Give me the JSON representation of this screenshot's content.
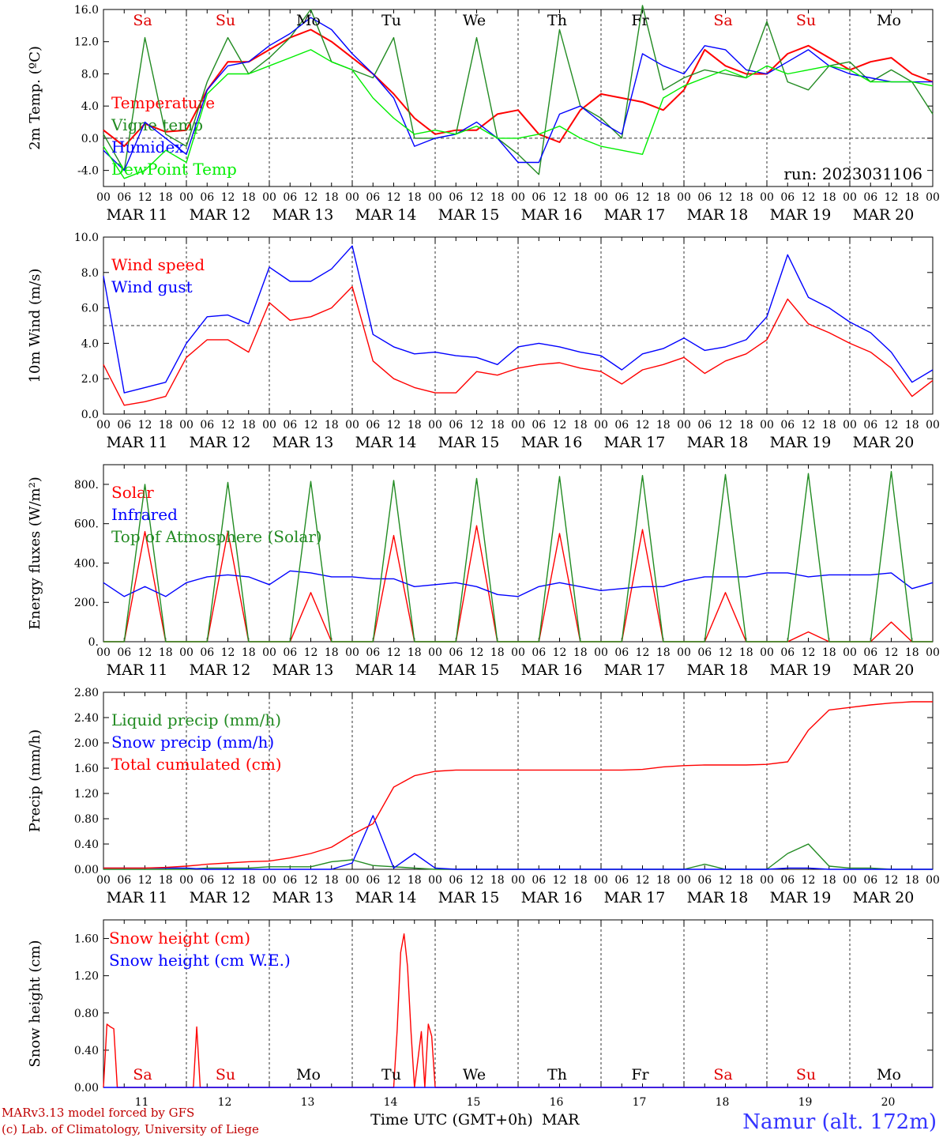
{
  "footer": {
    "model": "MARv3.13 model forced by GFS",
    "copyright": "(c) Lab. of Climatology, University of Liege",
    "xaxis_title": "Time UTC (GMT+0h)",
    "month": "MAR",
    "location": "Namur (alt. 172m)"
  },
  "days": [
    "MAR 11",
    "MAR 12",
    "MAR 13",
    "MAR 14",
    "MAR 15",
    "MAR 16",
    "MAR 17",
    "MAR 18",
    "MAR 19",
    "MAR 20"
  ],
  "day_numbers": [
    "11",
    "12",
    "13",
    "14",
    "15",
    "16",
    "17",
    "18",
    "19",
    "20"
  ],
  "weekdays": [
    "Sa",
    "Su",
    "Mo",
    "Tu",
    "We",
    "Th",
    "Fr",
    "Sa",
    "Su",
    "Mo"
  ],
  "weekday_colors": [
    "#e00000",
    "#e00000",
    "#000000",
    "#000000",
    "#000000",
    "#000000",
    "#000000",
    "#e00000",
    "#e00000",
    "#000000"
  ],
  "hour_ticks": [
    "00",
    "06",
    "12",
    "18"
  ],
  "chart_data": [
    {
      "type": "line",
      "ylabel": "2m Temp. (ºC)",
      "ylim": [
        -6,
        16
      ],
      "yticks": [
        -4,
        0,
        4,
        8,
        12,
        16
      ],
      "ytick_labels": [
        "-4.0",
        "0.0",
        "4.0",
        "8.0",
        "12.0",
        "16.0"
      ],
      "ref_line": 0,
      "annotation": "run: 2023031106",
      "x": [
        0,
        6,
        12,
        18,
        24,
        30,
        36,
        42,
        48,
        54,
        60,
        66,
        72,
        78,
        84,
        90,
        96,
        102,
        108,
        114,
        120,
        126,
        132,
        138,
        144,
        150,
        156,
        162,
        168,
        174,
        180,
        186,
        192,
        198,
        204,
        210,
        216,
        222,
        228,
        234,
        240
      ],
      "series": [
        {
          "name": "Temperature",
          "color": "#ff0000",
          "values": [
            1.0,
            -1.0,
            1.8,
            0.8,
            1.0,
            6.0,
            9.5,
            9.5,
            11.0,
            12.5,
            13.5,
            12.0,
            10.0,
            8.0,
            5.5,
            2.5,
            0.5,
            1.0,
            1.0,
            3.0,
            3.5,
            0.5,
            -0.5,
            3.5,
            5.5,
            5.0,
            4.5,
            3.5,
            6.0,
            11.0,
            9.0,
            8.0,
            8.0,
            10.5,
            11.5,
            10.0,
            8.5,
            9.5,
            10.0,
            8.0,
            7.0
          ]
        },
        {
          "name": "Vigne temp",
          "color": "#228b22",
          "values": [
            0.5,
            -4.0,
            12.5,
            0.5,
            -1.0,
            7.0,
            12.5,
            8.0,
            10.0,
            12.5,
            16.0,
            9.5,
            8.5,
            7.5,
            12.5,
            0.0,
            0.0,
            0.5,
            12.5,
            0.0,
            -2.0,
            -4.5,
            13.5,
            4.0,
            2.5,
            0.0,
            16.5,
            6.0,
            7.5,
            8.5,
            8.0,
            7.5,
            14.5,
            7.0,
            6.0,
            9.0,
            9.5,
            7.0,
            8.5,
            7.0,
            3.0
          ]
        },
        {
          "name": "Humidex",
          "color": "#0000ff",
          "values": [
            -1.5,
            -4.0,
            2.0,
            0.0,
            -2.0,
            6.0,
            9.0,
            9.5,
            11.5,
            13.0,
            15.0,
            13.5,
            10.5,
            8.0,
            5.0,
            -1.0,
            0.0,
            0.5,
            2.0,
            0.0,
            -3.0,
            -3.0,
            3.0,
            4.0,
            2.0,
            0.5,
            10.5,
            9.0,
            8.0,
            11.5,
            11.0,
            8.5,
            8.0,
            9.5,
            11.0,
            9.0,
            8.0,
            7.5,
            7.0,
            7.0,
            7.0
          ]
        },
        {
          "name": "DewPoint Temp",
          "color": "#00ee00",
          "values": [
            -1.0,
            -5.0,
            -4.0,
            -1.5,
            -3.0,
            5.5,
            8.0,
            8.0,
            9.0,
            10.0,
            11.0,
            9.5,
            8.5,
            5.0,
            2.5,
            0.5,
            1.0,
            0.5,
            1.5,
            0.0,
            0.0,
            0.5,
            1.5,
            0.0,
            -1.0,
            -1.5,
            -2.0,
            5.0,
            6.5,
            7.5,
            8.5,
            7.5,
            9.0,
            8.0,
            8.5,
            9.0,
            8.5,
            7.0,
            7.0,
            7.0,
            6.5
          ]
        }
      ]
    },
    {
      "type": "line",
      "ylabel": "10m Wind (m/s)",
      "ylim": [
        0,
        10
      ],
      "yticks": [
        0,
        2,
        4,
        6,
        8,
        10
      ],
      "ytick_labels": [
        "0.0",
        "2.0",
        "4.0",
        "6.0",
        "8.0",
        "10.0"
      ],
      "ref_line": 5,
      "x": [
        0,
        6,
        12,
        18,
        24,
        30,
        36,
        42,
        48,
        54,
        60,
        66,
        72,
        78,
        84,
        90,
        96,
        102,
        108,
        114,
        120,
        126,
        132,
        138,
        144,
        150,
        156,
        162,
        168,
        174,
        180,
        186,
        192,
        198,
        204,
        210,
        216,
        222,
        228,
        234,
        240
      ],
      "series": [
        {
          "name": "Wind speed",
          "color": "#ff0000",
          "values": [
            2.8,
            0.5,
            0.7,
            1.0,
            3.2,
            4.2,
            4.2,
            3.5,
            6.3,
            5.3,
            5.5,
            6.0,
            7.2,
            3.0,
            2.0,
            1.5,
            1.2,
            1.2,
            2.4,
            2.2,
            2.6,
            2.8,
            2.9,
            2.6,
            2.4,
            1.7,
            2.5,
            2.8,
            3.2,
            2.3,
            3.0,
            3.4,
            4.2,
            6.5,
            5.1,
            4.6,
            4.0,
            3.5,
            2.6,
            1.0,
            1.9
          ]
        },
        {
          "name": "Wind gust",
          "color": "#0000ff",
          "values": [
            7.8,
            1.2,
            1.5,
            1.8,
            4.0,
            5.5,
            5.6,
            5.1,
            8.3,
            7.5,
            7.5,
            8.2,
            9.5,
            4.5,
            3.8,
            3.4,
            3.5,
            3.3,
            3.2,
            2.8,
            3.8,
            4.0,
            3.8,
            3.5,
            3.3,
            2.5,
            3.4,
            3.7,
            4.3,
            3.6,
            3.8,
            4.2,
            5.5,
            9.0,
            6.6,
            6.0,
            5.2,
            4.6,
            3.5,
            1.8,
            2.5
          ]
        }
      ]
    },
    {
      "type": "line",
      "ylabel": "Energy fluxes (W/m²)",
      "ylim": [
        0,
        900
      ],
      "yticks": [
        0,
        200,
        400,
        600,
        800
      ],
      "ytick_labels": [
        "0.",
        "200.",
        "400.",
        "600.",
        "800."
      ],
      "x": [
        0,
        6,
        12,
        18,
        24,
        30,
        36,
        42,
        48,
        54,
        60,
        66,
        72,
        78,
        84,
        90,
        96,
        102,
        108,
        114,
        120,
        126,
        132,
        138,
        144,
        150,
        156,
        162,
        168,
        174,
        180,
        186,
        192,
        198,
        204,
        210,
        216,
        222,
        228,
        234,
        240
      ],
      "series": [
        {
          "name": "Solar",
          "color": "#ff0000",
          "values": [
            0,
            0,
            560,
            0,
            0,
            0,
            560,
            0,
            0,
            0,
            250,
            0,
            0,
            0,
            540,
            0,
            0,
            0,
            590,
            0,
            0,
            0,
            550,
            0,
            0,
            0,
            570,
            0,
            0,
            0,
            250,
            0,
            0,
            0,
            50,
            0,
            0,
            0,
            100,
            0,
            0
          ]
        },
        {
          "name": "Infrared",
          "color": "#0000ff",
          "values": [
            300,
            230,
            280,
            230,
            300,
            330,
            340,
            330,
            290,
            360,
            350,
            330,
            330,
            320,
            320,
            280,
            290,
            300,
            280,
            240,
            230,
            280,
            300,
            280,
            260,
            270,
            280,
            280,
            310,
            330,
            330,
            330,
            350,
            350,
            330,
            340,
            340,
            340,
            350,
            270,
            300
          ]
        },
        {
          "name": "Top of Atmosphere (Solar)",
          "color": "#228b22",
          "values": [
            0,
            0,
            800,
            0,
            0,
            0,
            810,
            0,
            0,
            0,
            815,
            0,
            0,
            0,
            820,
            0,
            0,
            0,
            830,
            0,
            0,
            0,
            840,
            0,
            0,
            0,
            845,
            0,
            0,
            0,
            850,
            0,
            0,
            0,
            855,
            0,
            0,
            0,
            865,
            0,
            0
          ]
        }
      ]
    },
    {
      "type": "line",
      "ylabel": "Precip (mm/h)",
      "ylim": [
        0,
        2.8
      ],
      "yticks": [
        0,
        0.4,
        0.8,
        1.2,
        1.6,
        2.0,
        2.4,
        2.8
      ],
      "ytick_labels": [
        "0.00",
        "0.40",
        "0.80",
        "1.20",
        "1.60",
        "2.00",
        "2.40",
        "2.80"
      ],
      "x": [
        0,
        6,
        12,
        18,
        24,
        30,
        36,
        42,
        48,
        54,
        60,
        66,
        72,
        78,
        84,
        90,
        96,
        102,
        108,
        114,
        120,
        126,
        132,
        138,
        144,
        150,
        156,
        162,
        168,
        174,
        180,
        186,
        192,
        198,
        204,
        210,
        216,
        222,
        228,
        234,
        240
      ],
      "series": [
        {
          "name": "Liquid precip (mm/h)",
          "color": "#228b22",
          "values": [
            0,
            0,
            0,
            0,
            0,
            0.02,
            0.02,
            0.02,
            0.04,
            0.04,
            0.04,
            0.12,
            0.15,
            0.06,
            0.04,
            0.02,
            0,
            0,
            0,
            0,
            0,
            0,
            0,
            0,
            0,
            0,
            0,
            0,
            0,
            0.08,
            0,
            0,
            0,
            0.25,
            0.4,
            0.05,
            0.02,
            0.02,
            0,
            0,
            0
          ]
        },
        {
          "name": "Snow precip (mm/h)",
          "color": "#0000ff",
          "values": [
            0.02,
            0.02,
            0.02,
            0.02,
            0.02,
            0,
            0,
            0,
            0,
            0,
            0,
            0,
            0.1,
            0.85,
            0.02,
            0.25,
            0.02,
            0,
            0,
            0,
            0,
            0,
            0,
            0,
            0,
            0,
            0,
            0,
            0,
            0,
            0,
            0,
            0,
            0.02,
            0.02,
            0,
            0,
            0,
            0,
            0,
            0
          ]
        },
        {
          "name": "Total cumulated (cm)",
          "color": "#ff0000",
          "values": [
            0.02,
            0.02,
            0.02,
            0.03,
            0.05,
            0.08,
            0.1,
            0.12,
            0.13,
            0.18,
            0.25,
            0.35,
            0.55,
            0.72,
            1.3,
            1.48,
            1.55,
            1.57,
            1.57,
            1.57,
            1.57,
            1.57,
            1.57,
            1.57,
            1.57,
            1.57,
            1.58,
            1.62,
            1.64,
            1.65,
            1.65,
            1.65,
            1.66,
            1.7,
            2.2,
            2.52,
            2.56,
            2.6,
            2.63,
            2.65,
            2.65
          ]
        }
      ]
    },
    {
      "type": "line",
      "ylabel": "Snow height (cm)",
      "ylim": [
        0,
        1.8
      ],
      "yticks": [
        0,
        0.4,
        0.8,
        1.2,
        1.6
      ],
      "ytick_labels": [
        "0.00",
        "0.40",
        "0.80",
        "1.20",
        "1.60"
      ],
      "x": [
        0,
        1,
        2,
        3,
        4,
        26,
        27,
        28,
        84,
        85,
        86,
        87,
        88,
        89,
        90,
        92,
        93,
        94,
        95,
        96,
        240
      ],
      "series": [
        {
          "name": "Snow height (cm)",
          "color": "#ff0000",
          "values": [
            0,
            0.68,
            0.65,
            0.63,
            0,
            0,
            0.65,
            0,
            0,
            0.62,
            1.45,
            1.65,
            1.3,
            0.6,
            0,
            0.6,
            0,
            0.68,
            0.55,
            0,
            0
          ]
        },
        {
          "name": "Snow height (cm W.E.)",
          "color": "#0000ff",
          "values": [
            0,
            0,
            0,
            0,
            0,
            0,
            0,
            0,
            0,
            0,
            0,
            0,
            0,
            0,
            0,
            0,
            0,
            0,
            0,
            0,
            0
          ]
        }
      ]
    }
  ]
}
